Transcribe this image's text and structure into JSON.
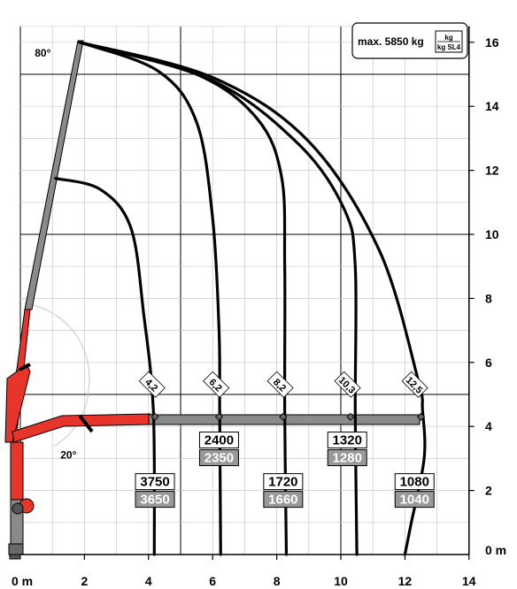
{
  "chart_data": {
    "type": "line",
    "title": "",
    "xlabel": "",
    "ylabel": "",
    "x_unit_label": "0 m",
    "y_unit_label": "0 m",
    "xlim": [
      0,
      14
    ],
    "ylim": [
      0,
      16
    ],
    "x_ticks": [
      2,
      4,
      6,
      8,
      10,
      12,
      14
    ],
    "y_ticks": [
      2,
      4,
      6,
      8,
      10,
      12,
      14,
      16
    ],
    "grid": true,
    "max_capacity_label": "max. 5850 kg",
    "legend_top": "kg",
    "legend_bottom": "kg SL4",
    "angle_labels": [
      {
        "text": "80°",
        "x": 0.7,
        "y": 15.55
      },
      {
        "text": "20°",
        "x": 1.5,
        "y": 3.0
      }
    ],
    "envelope_tip": [
      1.85,
      16.0
    ],
    "series": [
      {
        "reach_label": "4,2",
        "reach": 4.2,
        "label_pos": [
          4.1,
          5.3
        ],
        "capacity_kg": "3750",
        "capacity_sl4": "3650",
        "capacity_pos": [
          4.2,
          2.0
        ],
        "points": [
          [
            1.1,
            11.75
          ],
          [
            2.5,
            11.4
          ],
          [
            3.45,
            10.2
          ],
          [
            3.85,
            7.5
          ],
          [
            4.15,
            4.5
          ],
          [
            4.18,
            0
          ]
        ]
      },
      {
        "reach_label": "6,2",
        "reach": 6.2,
        "label_pos": [
          6.1,
          5.3
        ],
        "capacity_kg": "2400",
        "capacity_sl4": "2350",
        "capacity_pos": [
          6.2,
          3.3
        ],
        "points": [
          [
            1.85,
            16.0
          ],
          [
            4.3,
            15.1
          ],
          [
            5.5,
            13.5
          ],
          [
            6.0,
            10.5
          ],
          [
            6.2,
            7.0
          ],
          [
            6.22,
            4.5
          ],
          [
            6.25,
            0
          ]
        ]
      },
      {
        "reach_label": "8,2",
        "reach": 8.2,
        "label_pos": [
          8.1,
          5.3
        ],
        "capacity_kg": "1720",
        "capacity_sl4": "1660",
        "capacity_pos": [
          8.2,
          2.0
        ],
        "points": [
          [
            1.85,
            16.0
          ],
          [
            5.5,
            15.0
          ],
          [
            7.4,
            13.6
          ],
          [
            8.15,
            11.8
          ],
          [
            8.25,
            9.0
          ],
          [
            8.25,
            4.5
          ],
          [
            8.3,
            0
          ]
        ]
      },
      {
        "reach_label": "10,3",
        "reach": 10.3,
        "label_pos": [
          10.2,
          5.3
        ],
        "capacity_kg": "1320",
        "capacity_sl4": "1280",
        "capacity_pos": [
          10.2,
          3.3
        ],
        "points": [
          [
            1.85,
            16.0
          ],
          [
            6.0,
            14.8
          ],
          [
            8.7,
            12.8
          ],
          [
            10.1,
            10.8
          ],
          [
            10.45,
            9.0
          ],
          [
            10.45,
            4.5
          ],
          [
            10.5,
            0
          ]
        ]
      },
      {
        "reach_label": "12,5",
        "reach": 12.5,
        "label_pos": [
          12.3,
          5.3
        ],
        "capacity_kg": "1080",
        "capacity_sl4": "1040",
        "capacity_pos": [
          12.3,
          2.0
        ],
        "points": [
          [
            1.85,
            16.0
          ],
          [
            6.0,
            14.9
          ],
          [
            9.0,
            12.9
          ],
          [
            11.2,
            9.5
          ],
          [
            12.4,
            5.5
          ],
          [
            12.55,
            4.5
          ],
          [
            12.6,
            3.0
          ],
          [
            12.2,
            1.0
          ],
          [
            12.0,
            0
          ]
        ]
      }
    ]
  }
}
